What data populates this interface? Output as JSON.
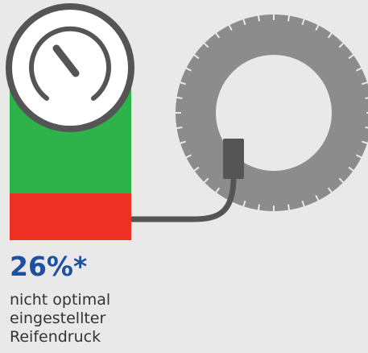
{
  "headline": "26%*",
  "description": [
    "nicht optimal",
    "eingestellter",
    "Reifendruck"
  ]
}
